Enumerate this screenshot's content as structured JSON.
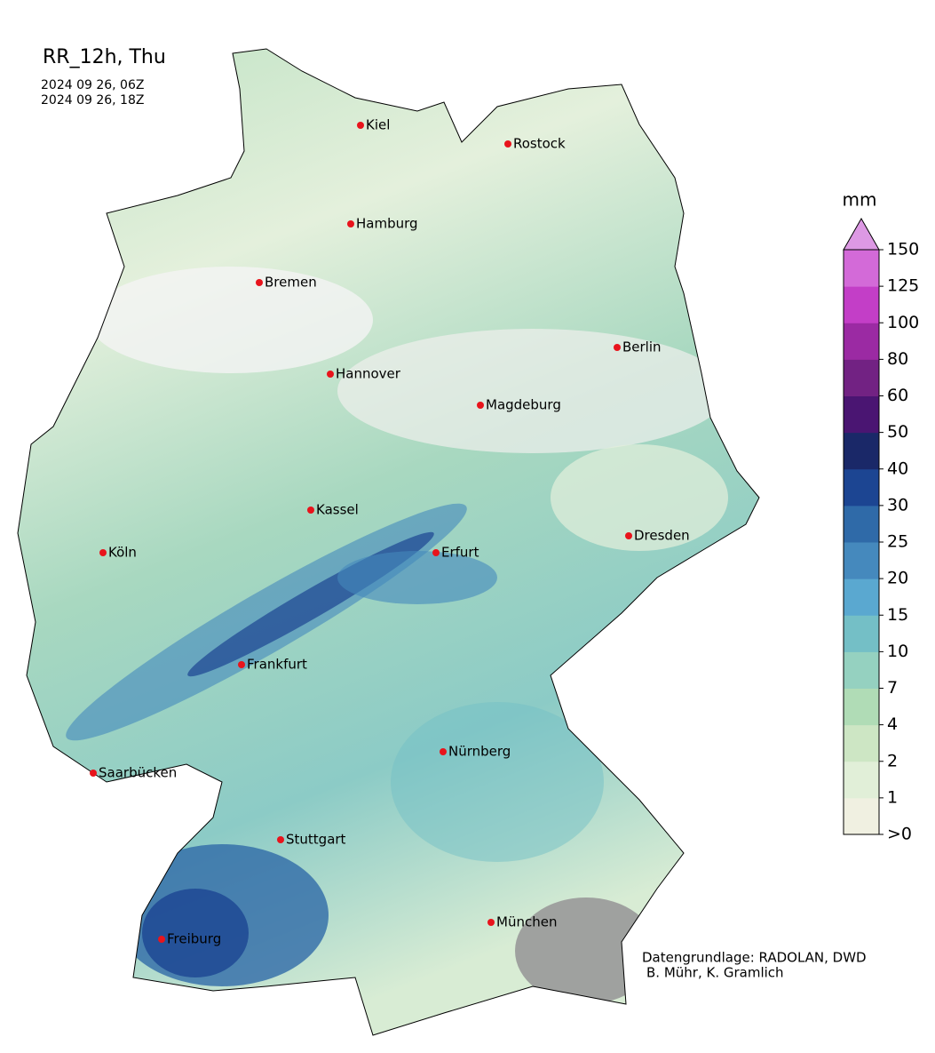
{
  "title": "RR_12h, Thu",
  "dates": [
    "2024 09 26, 06Z",
    "2024 09 26, 18Z"
  ],
  "cities": [
    "Kiel",
    "Rostock",
    "Hamburg",
    "Bremen",
    "Berlin",
    "Hannover",
    "Magdeburg",
    "Kassel",
    "Erfurt",
    "Dresden",
    "Köln",
    "Frankfurt",
    "Nürnberg",
    "Saarbücken",
    "Stuttgart",
    "München",
    "Freiburg"
  ],
  "legend": {
    "unit": "mm",
    "ticks": [
      ">0",
      "1",
      "2",
      "4",
      "7",
      "10",
      "15",
      "20",
      "25",
      "30",
      "40",
      "50",
      "60",
      "80",
      "100",
      "125",
      "150"
    ],
    "colors": [
      "#f0f0e1",
      "#e1efd8",
      "#cde6c4",
      "#b0dcb6",
      "#95d1c0",
      "#74bfc6",
      "#5aa8d0",
      "#4589bd",
      "#2f6aa8",
      "#1c4592",
      "#1a2868",
      "#4a1572",
      "#722283",
      "#9b2aa3",
      "#c33ec7",
      "#d36ad8",
      "#dd99e4"
    ]
  },
  "credits": [
    "Datengrundlage: RADOLAN, DWD",
    "B. Mühr, K. Gramlich"
  ]
}
